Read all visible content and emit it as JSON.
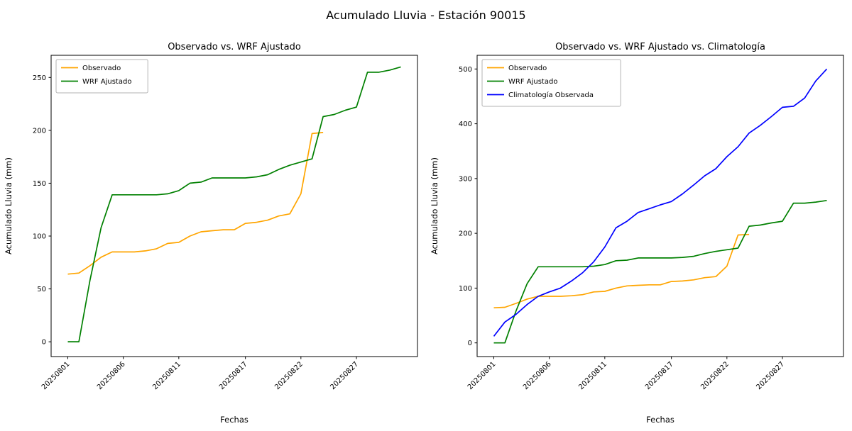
{
  "title": "Acumulado Lluvia - Estación 90015",
  "chart_data": [
    {
      "type": "line",
      "title": "Observado vs. WRF Ajustado",
      "xlabel": "Fechas",
      "ylabel": "Acumulado Lluvia (mm)",
      "grid": false,
      "legend_position": "upper left",
      "xlim": [
        -1.5,
        31.5
      ],
      "ylim": [
        -14,
        271
      ],
      "yticks": [
        0,
        50,
        100,
        150,
        200,
        250
      ],
      "xticks": {
        "positions": [
          0,
          5,
          10,
          16,
          21,
          26
        ],
        "labels": [
          "20250801",
          "20250806",
          "20250811",
          "20250817",
          "20250822",
          "20250827"
        ]
      },
      "series": [
        {
          "name": "Observado",
          "color": "#ffa500",
          "values": [
            64,
            65,
            72,
            80,
            85,
            85,
            85,
            86,
            88,
            93,
            94,
            100,
            104,
            105,
            106,
            106,
            112,
            113,
            115,
            119,
            121,
            140,
            197,
            198
          ]
        },
        {
          "name": "WRF Ajustado",
          "color": "#008000",
          "values": [
            0,
            0,
            58,
            108,
            139,
            139,
            139,
            139,
            139,
            140,
            143,
            150,
            151,
            155,
            155,
            155,
            155,
            156,
            158,
            163,
            167,
            170,
            173,
            213,
            215,
            219,
            222,
            255,
            255,
            257,
            260
          ]
        }
      ]
    },
    {
      "type": "line",
      "title": "Observado vs. WRF Ajustado vs. Climatología",
      "xlabel": "Fechas",
      "ylabel": "Acumulado Lluvia (mm)",
      "grid": false,
      "legend_position": "upper left",
      "xlim": [
        -1.5,
        31.5
      ],
      "ylim": [
        -25,
        525
      ],
      "yticks": [
        0,
        100,
        200,
        300,
        400,
        500
      ],
      "xticks": {
        "positions": [
          0,
          5,
          10,
          16,
          21,
          26
        ],
        "labels": [
          "20250801",
          "20250806",
          "20250811",
          "20250817",
          "20250822",
          "20250827"
        ]
      },
      "series": [
        {
          "name": "Observado",
          "color": "#ffa500",
          "values": [
            64,
            65,
            72,
            80,
            85,
            85,
            85,
            86,
            88,
            93,
            94,
            100,
            104,
            105,
            106,
            106,
            112,
            113,
            115,
            119,
            121,
            140,
            197,
            198
          ]
        },
        {
          "name": "WRF Ajustado",
          "color": "#008000",
          "values": [
            0,
            0,
            58,
            108,
            139,
            139,
            139,
            139,
            139,
            140,
            143,
            150,
            151,
            155,
            155,
            155,
            155,
            156,
            158,
            163,
            167,
            170,
            173,
            213,
            215,
            219,
            222,
            255,
            255,
            257,
            260
          ]
        },
        {
          "name": "Climatología Observada",
          "color": "#0000ff",
          "values": [
            12,
            38,
            52,
            70,
            85,
            93,
            100,
            113,
            128,
            148,
            175,
            210,
            222,
            238,
            245,
            252,
            258,
            272,
            288,
            305,
            318,
            340,
            358,
            383,
            397,
            413,
            430,
            432,
            447,
            478,
            500
          ]
        }
      ]
    }
  ]
}
